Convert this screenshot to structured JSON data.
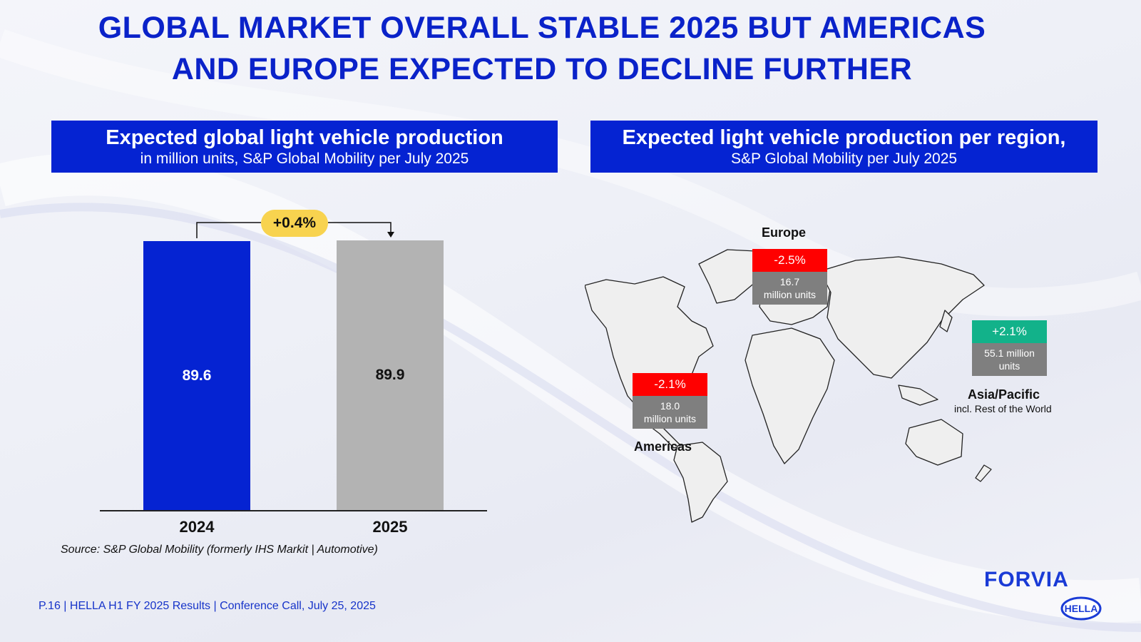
{
  "title": {
    "line1": "GLOBAL MARKET OVERALL STABLE 2025 BUT AMERICAS",
    "line2": "AND EUROPE EXPECTED TO DECLINE FURTHER"
  },
  "left_panel": {
    "heading": "Expected global light vehicle production",
    "subheading": "in million units, S&P Global Mobility per July 2025",
    "growth": "+0.4%",
    "source": "Source: S&P Global Mobility (formerly IHS Markit | Automotive)"
  },
  "chart_data": {
    "type": "bar",
    "title": "Expected global light vehicle production",
    "ylabel": "million units",
    "categories": [
      "2024",
      "2025"
    ],
    "values": [
      89.6,
      89.9
    ],
    "labels": [
      "89.6",
      "89.9"
    ],
    "colors": [
      "#0523d2",
      "#b3b3b3"
    ],
    "label_colors": [
      "#ffffff",
      "#111111"
    ],
    "ylim": [
      0,
      89.9
    ],
    "annotation": "+0.4%"
  },
  "right_panel": {
    "heading": "Expected light vehicle production per region,",
    "subheading": "S&P Global Mobility per July 2025",
    "regions": [
      {
        "name": "Europe",
        "sub": "",
        "pct": "-2.5%",
        "units_line1": "16.7",
        "units_line2": "million  units",
        "color": "#ff0000"
      },
      {
        "name": "Americas",
        "sub": "",
        "pct": "-2.1%",
        "units_line1": "18.0",
        "units_line2": "million  units",
        "color": "#ff0000"
      },
      {
        "name": "Asia/Pacific",
        "sub": "incl. Rest of the World",
        "pct": "+2.1%",
        "units_line1": "55.1 million",
        "units_line2": "units",
        "color": "#12b28a"
      }
    ]
  },
  "footer": {
    "text": "P.16 | HELLA H1 FY 2025 Results | Conference Call, July 25, 2025"
  },
  "logos": {
    "forvia": "FORVIA",
    "hella": "HELLA"
  }
}
